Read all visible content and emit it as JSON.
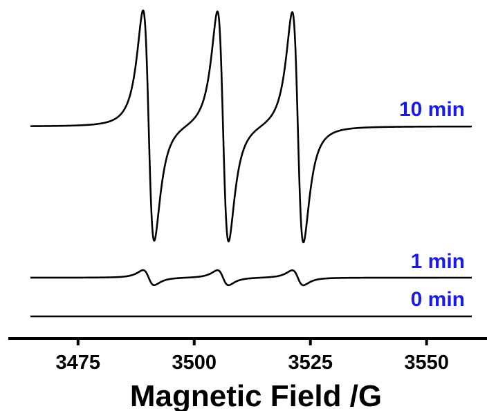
{
  "chart_data": {
    "type": "line",
    "xlabel": "Magnetic Field /G",
    "ylabel": "",
    "xlim": [
      3460,
      3563
    ],
    "xticks": [
      3475,
      3500,
      3525,
      3550
    ],
    "xtick_labels": [
      "3475",
      "3500",
      "3525",
      "3550"
    ],
    "y_axis_visible": false,
    "label_color": "#1a1ae6",
    "trace_color": "#000000",
    "hyperfine_line_centers": [
      3490.2,
      3506.2,
      3522.3
    ],
    "linewidth_peak_to_peak": 2.4,
    "series": [
      {
        "name": "10 min",
        "baseline": 0,
        "relative_amplitude": 1.0
      },
      {
        "name": "1 min",
        "baseline": 0,
        "relative_amplitude": 0.065
      },
      {
        "name": "0 min",
        "baseline": 0,
        "relative_amplitude": 0.0
      }
    ]
  }
}
